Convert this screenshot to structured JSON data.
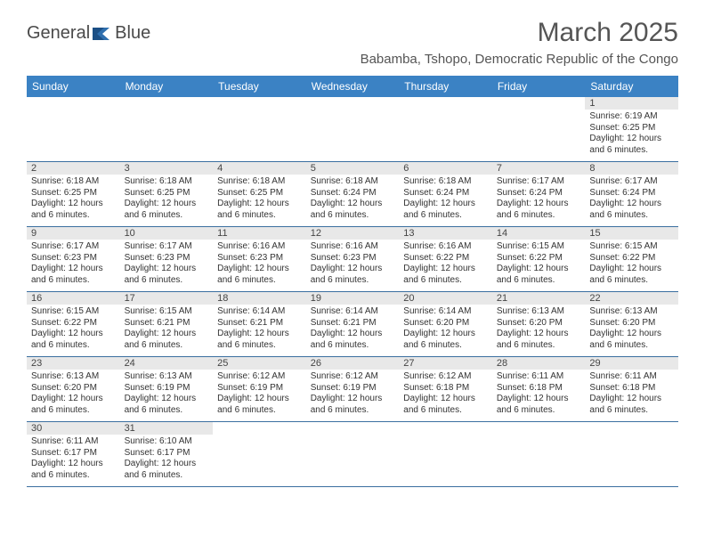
{
  "brand": {
    "part1": "General",
    "part2": "Blue"
  },
  "title": "March 2025",
  "location": "Babamba, Tshopo, Democratic Republic of the Congo",
  "header_bg": "#3b82c4",
  "weekdays": [
    "Sunday",
    "Monday",
    "Tuesday",
    "Wednesday",
    "Thursday",
    "Friday",
    "Saturday"
  ],
  "grid": [
    [
      null,
      null,
      null,
      null,
      null,
      null,
      {
        "n": "1",
        "sr": "Sunrise: 6:19 AM",
        "ss": "Sunset: 6:25 PM",
        "d1": "Daylight: 12 hours",
        "d2": "and 6 minutes."
      }
    ],
    [
      {
        "n": "2",
        "sr": "Sunrise: 6:18 AM",
        "ss": "Sunset: 6:25 PM",
        "d1": "Daylight: 12 hours",
        "d2": "and 6 minutes."
      },
      {
        "n": "3",
        "sr": "Sunrise: 6:18 AM",
        "ss": "Sunset: 6:25 PM",
        "d1": "Daylight: 12 hours",
        "d2": "and 6 minutes."
      },
      {
        "n": "4",
        "sr": "Sunrise: 6:18 AM",
        "ss": "Sunset: 6:25 PM",
        "d1": "Daylight: 12 hours",
        "d2": "and 6 minutes."
      },
      {
        "n": "5",
        "sr": "Sunrise: 6:18 AM",
        "ss": "Sunset: 6:24 PM",
        "d1": "Daylight: 12 hours",
        "d2": "and 6 minutes."
      },
      {
        "n": "6",
        "sr": "Sunrise: 6:18 AM",
        "ss": "Sunset: 6:24 PM",
        "d1": "Daylight: 12 hours",
        "d2": "and 6 minutes."
      },
      {
        "n": "7",
        "sr": "Sunrise: 6:17 AM",
        "ss": "Sunset: 6:24 PM",
        "d1": "Daylight: 12 hours",
        "d2": "and 6 minutes."
      },
      {
        "n": "8",
        "sr": "Sunrise: 6:17 AM",
        "ss": "Sunset: 6:24 PM",
        "d1": "Daylight: 12 hours",
        "d2": "and 6 minutes."
      }
    ],
    [
      {
        "n": "9",
        "sr": "Sunrise: 6:17 AM",
        "ss": "Sunset: 6:23 PM",
        "d1": "Daylight: 12 hours",
        "d2": "and 6 minutes."
      },
      {
        "n": "10",
        "sr": "Sunrise: 6:17 AM",
        "ss": "Sunset: 6:23 PM",
        "d1": "Daylight: 12 hours",
        "d2": "and 6 minutes."
      },
      {
        "n": "11",
        "sr": "Sunrise: 6:16 AM",
        "ss": "Sunset: 6:23 PM",
        "d1": "Daylight: 12 hours",
        "d2": "and 6 minutes."
      },
      {
        "n": "12",
        "sr": "Sunrise: 6:16 AM",
        "ss": "Sunset: 6:23 PM",
        "d1": "Daylight: 12 hours",
        "d2": "and 6 minutes."
      },
      {
        "n": "13",
        "sr": "Sunrise: 6:16 AM",
        "ss": "Sunset: 6:22 PM",
        "d1": "Daylight: 12 hours",
        "d2": "and 6 minutes."
      },
      {
        "n": "14",
        "sr": "Sunrise: 6:15 AM",
        "ss": "Sunset: 6:22 PM",
        "d1": "Daylight: 12 hours",
        "d2": "and 6 minutes."
      },
      {
        "n": "15",
        "sr": "Sunrise: 6:15 AM",
        "ss": "Sunset: 6:22 PM",
        "d1": "Daylight: 12 hours",
        "d2": "and 6 minutes."
      }
    ],
    [
      {
        "n": "16",
        "sr": "Sunrise: 6:15 AM",
        "ss": "Sunset: 6:22 PM",
        "d1": "Daylight: 12 hours",
        "d2": "and 6 minutes."
      },
      {
        "n": "17",
        "sr": "Sunrise: 6:15 AM",
        "ss": "Sunset: 6:21 PM",
        "d1": "Daylight: 12 hours",
        "d2": "and 6 minutes."
      },
      {
        "n": "18",
        "sr": "Sunrise: 6:14 AM",
        "ss": "Sunset: 6:21 PM",
        "d1": "Daylight: 12 hours",
        "d2": "and 6 minutes."
      },
      {
        "n": "19",
        "sr": "Sunrise: 6:14 AM",
        "ss": "Sunset: 6:21 PM",
        "d1": "Daylight: 12 hours",
        "d2": "and 6 minutes."
      },
      {
        "n": "20",
        "sr": "Sunrise: 6:14 AM",
        "ss": "Sunset: 6:20 PM",
        "d1": "Daylight: 12 hours",
        "d2": "and 6 minutes."
      },
      {
        "n": "21",
        "sr": "Sunrise: 6:13 AM",
        "ss": "Sunset: 6:20 PM",
        "d1": "Daylight: 12 hours",
        "d2": "and 6 minutes."
      },
      {
        "n": "22",
        "sr": "Sunrise: 6:13 AM",
        "ss": "Sunset: 6:20 PM",
        "d1": "Daylight: 12 hours",
        "d2": "and 6 minutes."
      }
    ],
    [
      {
        "n": "23",
        "sr": "Sunrise: 6:13 AM",
        "ss": "Sunset: 6:20 PM",
        "d1": "Daylight: 12 hours",
        "d2": "and 6 minutes."
      },
      {
        "n": "24",
        "sr": "Sunrise: 6:13 AM",
        "ss": "Sunset: 6:19 PM",
        "d1": "Daylight: 12 hours",
        "d2": "and 6 minutes."
      },
      {
        "n": "25",
        "sr": "Sunrise: 6:12 AM",
        "ss": "Sunset: 6:19 PM",
        "d1": "Daylight: 12 hours",
        "d2": "and 6 minutes."
      },
      {
        "n": "26",
        "sr": "Sunrise: 6:12 AM",
        "ss": "Sunset: 6:19 PM",
        "d1": "Daylight: 12 hours",
        "d2": "and 6 minutes."
      },
      {
        "n": "27",
        "sr": "Sunrise: 6:12 AM",
        "ss": "Sunset: 6:18 PM",
        "d1": "Daylight: 12 hours",
        "d2": "and 6 minutes."
      },
      {
        "n": "28",
        "sr": "Sunrise: 6:11 AM",
        "ss": "Sunset: 6:18 PM",
        "d1": "Daylight: 12 hours",
        "d2": "and 6 minutes."
      },
      {
        "n": "29",
        "sr": "Sunrise: 6:11 AM",
        "ss": "Sunset: 6:18 PM",
        "d1": "Daylight: 12 hours",
        "d2": "and 6 minutes."
      }
    ],
    [
      {
        "n": "30",
        "sr": "Sunrise: 6:11 AM",
        "ss": "Sunset: 6:17 PM",
        "d1": "Daylight: 12 hours",
        "d2": "and 6 minutes."
      },
      {
        "n": "31",
        "sr": "Sunrise: 6:10 AM",
        "ss": "Sunset: 6:17 PM",
        "d1": "Daylight: 12 hours",
        "d2": "and 6 minutes."
      },
      null,
      null,
      null,
      null,
      null
    ]
  ]
}
